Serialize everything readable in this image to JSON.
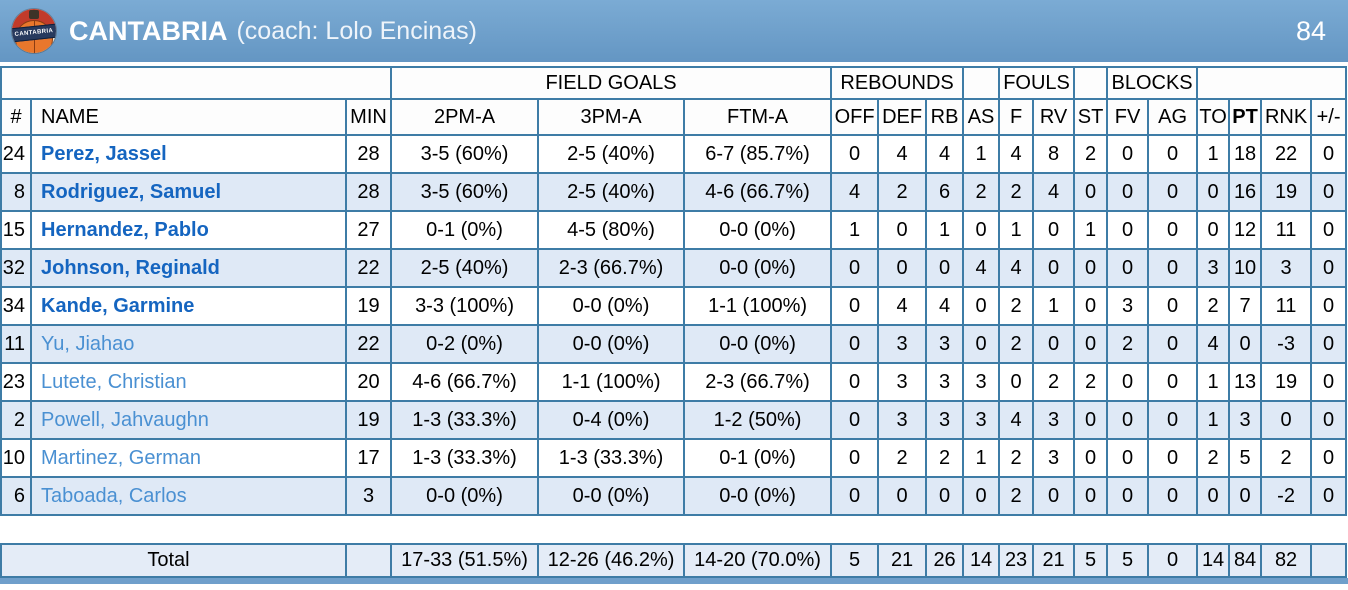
{
  "team": {
    "name": "CANTABRIA",
    "coach_label": "(coach: Lolo Encinas)",
    "score": "84",
    "logo_text": "CANTABRIA"
  },
  "colors": {
    "header_bg": "#6f9fcb",
    "border": "#3e7ca6",
    "row_alt": "#dfe9f6",
    "total_bg": "#e4ecf7",
    "name_starter": "#1565c0",
    "name_bench": "#4a90d2"
  },
  "table": {
    "groups": [
      {
        "label": "",
        "span": 3
      },
      {
        "label": "FIELD GOALS",
        "span": 3
      },
      {
        "label": "REBOUNDS",
        "span": 3
      },
      {
        "label": "",
        "span": 1
      },
      {
        "label": "FOULS",
        "span": 2
      },
      {
        "label": "",
        "span": 1
      },
      {
        "label": "BLOCKS",
        "span": 2
      },
      {
        "label": "",
        "span": 4
      }
    ],
    "columns": [
      "#",
      "NAME",
      "MIN",
      "2PM-A",
      "3PM-A",
      "FTM-A",
      "OFF",
      "DEF",
      "RB",
      "AS",
      "F",
      "RV",
      "ST",
      "FV",
      "AG",
      "TO",
      "PT",
      "RNK",
      "+/-"
    ],
    "column_keys": [
      "jersey-number",
      "player-name",
      "minutes",
      "2pm-a",
      "3pm-a",
      "ftm-a",
      "off-rebounds",
      "def-rebounds",
      "rebounds",
      "assists",
      "fouls",
      "fouls-received",
      "steals",
      "blocks-favor",
      "blocks-against",
      "turnovers",
      "points",
      "rank",
      "plus-minus"
    ],
    "players": [
      {
        "starter": true,
        "cells": [
          "24",
          "Perez, Jassel",
          "28",
          "3-5 (60%)",
          "2-5 (40%)",
          "6-7 (85.7%)",
          "0",
          "4",
          "4",
          "1",
          "4",
          "8",
          "2",
          "0",
          "0",
          "1",
          "18",
          "22",
          "0"
        ]
      },
      {
        "starter": true,
        "cells": [
          "8",
          "Rodriguez, Samuel",
          "28",
          "3-5 (60%)",
          "2-5 (40%)",
          "4-6 (66.7%)",
          "4",
          "2",
          "6",
          "2",
          "2",
          "4",
          "0",
          "0",
          "0",
          "0",
          "16",
          "19",
          "0"
        ]
      },
      {
        "starter": true,
        "cells": [
          "15",
          "Hernandez, Pablo",
          "27",
          "0-1 (0%)",
          "4-5 (80%)",
          "0-0 (0%)",
          "1",
          "0",
          "1",
          "0",
          "1",
          "0",
          "1",
          "0",
          "0",
          "0",
          "12",
          "11",
          "0"
        ]
      },
      {
        "starter": true,
        "cells": [
          "32",
          "Johnson, Reginald",
          "22",
          "2-5 (40%)",
          "2-3 (66.7%)",
          "0-0 (0%)",
          "0",
          "0",
          "0",
          "4",
          "4",
          "0",
          "0",
          "0",
          "0",
          "3",
          "10",
          "3",
          "0"
        ]
      },
      {
        "starter": true,
        "cells": [
          "34",
          "Kande, Garmine",
          "19",
          "3-3 (100%)",
          "0-0 (0%)",
          "1-1 (100%)",
          "0",
          "4",
          "4",
          "0",
          "2",
          "1",
          "0",
          "3",
          "0",
          "2",
          "7",
          "11",
          "0"
        ]
      },
      {
        "starter": false,
        "cells": [
          "11",
          "Yu, Jiahao",
          "22",
          "0-2 (0%)",
          "0-0 (0%)",
          "0-0 (0%)",
          "0",
          "3",
          "3",
          "0",
          "2",
          "0",
          "0",
          "2",
          "0",
          "4",
          "0",
          "-3",
          "0"
        ]
      },
      {
        "starter": false,
        "cells": [
          "23",
          "Lutete, Christian",
          "20",
          "4-6 (66.7%)",
          "1-1 (100%)",
          "2-3 (66.7%)",
          "0",
          "3",
          "3",
          "3",
          "0",
          "2",
          "2",
          "0",
          "0",
          "1",
          "13",
          "19",
          "0"
        ]
      },
      {
        "starter": false,
        "cells": [
          "2",
          "Powell, Jahvaughn",
          "19",
          "1-3 (33.3%)",
          "0-4 (0%)",
          "1-2 (50%)",
          "0",
          "3",
          "3",
          "3",
          "4",
          "3",
          "0",
          "0",
          "0",
          "1",
          "3",
          "0",
          "0"
        ]
      },
      {
        "starter": false,
        "cells": [
          "10",
          "Martinez, German",
          "17",
          "1-3 (33.3%)",
          "1-3 (33.3%)",
          "0-1 (0%)",
          "0",
          "2",
          "2",
          "1",
          "2",
          "3",
          "0",
          "0",
          "0",
          "2",
          "5",
          "2",
          "0"
        ]
      },
      {
        "starter": false,
        "cells": [
          "6",
          "Taboada, Carlos",
          "3",
          "0-0 (0%)",
          "0-0 (0%)",
          "0-0 (0%)",
          "0",
          "0",
          "0",
          "0",
          "2",
          "0",
          "0",
          "0",
          "0",
          "0",
          "0",
          "-2",
          "0"
        ]
      }
    ],
    "total": {
      "label": "Total",
      "min": "",
      "cells": [
        "17-33 (51.5%)",
        "12-26 (46.2%)",
        "14-20 (70.0%)",
        "5",
        "21",
        "26",
        "14",
        "23",
        "21",
        "5",
        "5",
        "0",
        "14",
        "84",
        "82",
        ""
      ]
    }
  }
}
